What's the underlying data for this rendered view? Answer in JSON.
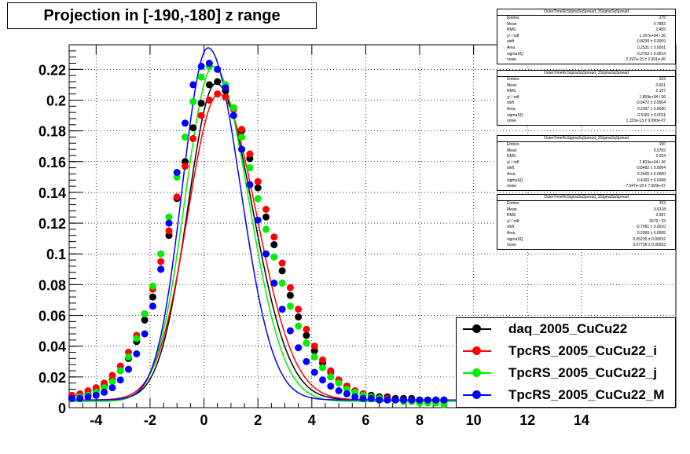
{
  "chart_data": {
    "type": "scatter",
    "title": "Projection in [-190,-180] z range",
    "xlabel": "",
    "ylabel": "",
    "xlim": [
      -5,
      17.5
    ],
    "ylim": [
      0,
      0.236
    ],
    "x_ticks": [
      -4,
      -2,
      0,
      2,
      4,
      6,
      8,
      10,
      12,
      14
    ],
    "x_tick_labels": [
      "-4",
      "-2",
      "0",
      "2",
      "4",
      "6",
      "8",
      "10",
      "12",
      "14"
    ],
    "y_ticks": [
      0,
      0.02,
      0.04,
      0.06,
      0.08,
      0.1,
      0.12,
      0.14,
      0.16,
      0.18,
      0.2,
      0.22
    ],
    "y_tick_labels": [
      "0",
      "0.02",
      "0.04",
      "0.06",
      "0.08",
      "0.1",
      "0.12",
      "0.14",
      "0.16",
      "0.18",
      "0.2",
      "0.22"
    ],
    "grid": true,
    "legend_position": "bottom-right",
    "series": [
      {
        "name": "daq_2005_CuCu22",
        "color": "#000000",
        "x": [
          -4.9,
          -4.6,
          -4.3,
          -4.0,
          -3.7,
          -3.4,
          -3.1,
          -2.8,
          -2.5,
          -2.2,
          -1.9,
          -1.6,
          -1.3,
          -1.0,
          -0.7,
          -0.4,
          -0.1,
          0.2,
          0.5,
          0.8,
          1.1,
          1.4,
          1.7,
          2.0,
          2.3,
          2.6,
          2.9,
          3.2,
          3.5,
          3.8,
          4.1,
          4.4,
          4.7,
          5.0,
          5.3,
          5.6,
          5.9,
          6.2,
          6.5,
          6.8,
          7.1,
          7.4,
          7.7,
          8.0,
          8.3,
          8.6,
          8.9
        ],
        "y": [
          0.007,
          0.008,
          0.009,
          0.011,
          0.014,
          0.018,
          0.024,
          0.032,
          0.043,
          0.057,
          0.072,
          0.09,
          0.112,
          0.136,
          0.16,
          0.182,
          0.198,
          0.21,
          0.212,
          0.206,
          0.195,
          0.18,
          0.162,
          0.143,
          0.124,
          0.106,
          0.089,
          0.073,
          0.059,
          0.047,
          0.037,
          0.029,
          0.023,
          0.018,
          0.014,
          0.011,
          0.009,
          0.008,
          0.007,
          0.007,
          0.006,
          0.006,
          0.006,
          0.005,
          0.005,
          0.005,
          0.005
        ]
      },
      {
        "name": "TpcRS_2005_CuCu22_i",
        "color": "#ff0000",
        "x": [
          -4.9,
          -4.6,
          -4.3,
          -4.0,
          -3.7,
          -3.4,
          -3.1,
          -2.8,
          -2.5,
          -2.2,
          -1.9,
          -1.6,
          -1.3,
          -1.0,
          -0.7,
          -0.4,
          -0.1,
          0.2,
          0.5,
          0.8,
          1.1,
          1.4,
          1.7,
          2.0,
          2.3,
          2.6,
          2.9,
          3.2,
          3.5,
          3.8,
          4.1,
          4.4,
          4.7,
          5.0,
          5.3,
          5.6,
          5.9,
          6.2,
          6.5,
          6.8,
          7.1,
          7.4,
          7.7,
          8.0,
          8.3,
          8.6,
          8.9
        ],
        "y": [
          0.008,
          0.009,
          0.011,
          0.013,
          0.016,
          0.021,
          0.027,
          0.036,
          0.047,
          0.061,
          0.077,
          0.095,
          0.115,
          0.137,
          0.157,
          0.175,
          0.19,
          0.2,
          0.204,
          0.202,
          0.194,
          0.181,
          0.165,
          0.147,
          0.129,
          0.111,
          0.094,
          0.078,
          0.064,
          0.051,
          0.04,
          0.031,
          0.024,
          0.018,
          0.014,
          0.011,
          0.009,
          0.007,
          0.006,
          0.006,
          0.005,
          0.005,
          0.005,
          0.004,
          0.004,
          0.004,
          0.004
        ]
      },
      {
        "name": "TpcRS_2005_CuCu22_j",
        "color": "#00ee00",
        "x": [
          -4.9,
          -4.6,
          -4.3,
          -4.0,
          -3.7,
          -3.4,
          -3.1,
          -2.8,
          -2.5,
          -2.2,
          -1.9,
          -1.6,
          -1.3,
          -1.0,
          -0.7,
          -0.4,
          -0.1,
          0.2,
          0.5,
          0.8,
          1.1,
          1.4,
          1.7,
          2.0,
          2.3,
          2.6,
          2.9,
          3.2,
          3.5,
          3.8,
          4.1,
          4.4,
          4.7,
          5.0,
          5.3,
          5.6,
          5.9,
          6.2,
          6.5,
          6.8,
          7.1,
          7.4,
          7.7,
          8.0,
          8.3,
          8.6,
          8.9
        ],
        "y": [
          0.006,
          0.007,
          0.008,
          0.01,
          0.013,
          0.017,
          0.024,
          0.033,
          0.045,
          0.061,
          0.079,
          0.1,
          0.124,
          0.15,
          0.176,
          0.199,
          0.215,
          0.222,
          0.22,
          0.21,
          0.195,
          0.176,
          0.156,
          0.136,
          0.116,
          0.098,
          0.081,
          0.066,
          0.053,
          0.042,
          0.033,
          0.026,
          0.02,
          0.016,
          0.012,
          0.01,
          0.008,
          0.007,
          0.006,
          0.005,
          0.005,
          0.004,
          0.004,
          0.003,
          0.003,
          0.003,
          0.002
        ]
      },
      {
        "name": "TpcRS_2005_CuCu22_M",
        "color": "#0000ff",
        "x": [
          -4.9,
          -4.6,
          -4.3,
          -4.0,
          -3.7,
          -3.4,
          -3.1,
          -2.8,
          -2.5,
          -2.2,
          -1.9,
          -1.6,
          -1.3,
          -1.0,
          -0.7,
          -0.4,
          -0.1,
          0.2,
          0.5,
          0.8,
          1.1,
          1.4,
          1.7,
          2.0,
          2.3,
          2.6,
          2.9,
          3.2,
          3.5,
          3.8,
          4.1,
          4.4,
          4.7,
          5.0,
          5.3,
          5.6,
          5.9,
          6.2,
          6.5,
          6.8,
          7.1,
          7.4,
          7.7,
          8.0,
          8.3,
          8.6,
          8.9
        ],
        "y": [
          0.006,
          0.006,
          0.007,
          0.008,
          0.01,
          0.013,
          0.018,
          0.025,
          0.035,
          0.048,
          0.066,
          0.09,
          0.12,
          0.153,
          0.185,
          0.21,
          0.222,
          0.224,
          0.22,
          0.208,
          0.19,
          0.168,
          0.145,
          0.122,
          0.1,
          0.081,
          0.064,
          0.05,
          0.039,
          0.03,
          0.023,
          0.018,
          0.014,
          0.011,
          0.009,
          0.007,
          0.006,
          0.006,
          0.005,
          0.005,
          0.005,
          0.005,
          0.005,
          0.005,
          0.005,
          0.005,
          0.005
        ]
      }
    ],
    "fits": [
      {
        "color": "#000000",
        "peak_x": 0.45,
        "peak_y": 0.211,
        "sigma_l": 1.05,
        "sigma_r": 1.35,
        "base": 0.005
      },
      {
        "color": "#ff0000",
        "peak_x": 0.55,
        "peak_y": 0.204,
        "sigma_l": 1.15,
        "sigma_r": 1.4,
        "base": 0.005
      },
      {
        "color": "#00ee00",
        "peak_x": 0.35,
        "peak_y": 0.222,
        "sigma_l": 1.05,
        "sigma_r": 1.3,
        "base": 0.004
      },
      {
        "color": "#0000ff",
        "peak_x": 0.15,
        "peak_y": 0.234,
        "sigma_l": 0.95,
        "sigma_r": 1.2,
        "base": 0.005
      }
    ],
    "stat_boxes": [
      {
        "name": "OuterTimeRcSigmaSqSpread_3SigmaSqSpread",
        "rows": [
          [
            "Entries",
            "175"
          ],
          [
            "Mean",
            "0.7883"
          ],
          [
            "RMS",
            "2.455"
          ],
          [
            "χ² / ndf",
            "1.167e+04 / 36"
          ],
          [
            "shift",
            "-0.8239 ± 0.0009"
          ],
          [
            "Area",
            "0.2531 ± 0.0001"
          ],
          [
            "sigmaSQ",
            "0.3703 ± 0.0014"
          ],
          [
            "noise",
            "2.297e-15 ± 2.991e-06"
          ]
        ]
      },
      {
        "name": "OuterTimeRcSigmaSqSpread_3SigmaSqSpread",
        "rows": [
          [
            "Entries",
            "153"
          ],
          [
            "Mean",
            "0.601"
          ],
          [
            "RMS",
            "2.107"
          ],
          [
            "χ² / ndf",
            "1.859e+04 / 36"
          ],
          [
            "shift",
            "-0.8472 ± 0.0004"
          ],
          [
            "Area",
            "0.2397 ± 0.0000"
          ],
          [
            "sigmaSQ",
            "0.5181 ± 0.0011"
          ],
          [
            "noise",
            "1.153e-13 ± 9.990e-07"
          ]
        ]
      },
      {
        "name": "OuterTimeRcSigmaSqSpread_3SigmaSqSpread",
        "rows": [
          [
            "Entries",
            "150"
          ],
          [
            "Mean",
            "0.5783"
          ],
          [
            "RMS",
            "2.034"
          ],
          [
            "χ² / ndf",
            "2.803e+04 / 36"
          ],
          [
            "shift",
            "-0.8492 ± 0.0004"
          ],
          [
            "Area",
            "0.2405 ± 0.0000"
          ],
          [
            "sigmaSQ",
            "0.4393 ± 0.0008"
          ],
          [
            "noise",
            "7.047e-18 ± 7.509e-07"
          ]
        ]
      },
      {
        "name": "OuterTimeRcSigmaSqSpread_3SigmaSqSpread",
        "rows": [
          [
            "Entries",
            "153"
          ],
          [
            "Mean",
            "0.6118"
          ],
          [
            "RMS",
            "2.087"
          ],
          [
            "χ² / ndf",
            "3679 / 33"
          ],
          [
            "shift",
            "-0.7061 ± 0.0010"
          ],
          [
            "Area",
            "0.2099 ± 0.0005"
          ],
          [
            "sigmaSQ",
            "0.05225 ± 0.00032"
          ],
          [
            "noise",
            "0.07728 ± 0.00033"
          ]
        ]
      }
    ],
    "legend": [
      {
        "label": "daq_2005_CuCu22",
        "color": "#000000"
      },
      {
        "label": "TpcRS_2005_CuCu22_i",
        "color": "#ff0000"
      },
      {
        "label": "TpcRS_2005_CuCu22_j",
        "color": "#00ee00"
      },
      {
        "label": "TpcRS_2005_CuCu22_M",
        "color": "#0000ff"
      }
    ]
  }
}
